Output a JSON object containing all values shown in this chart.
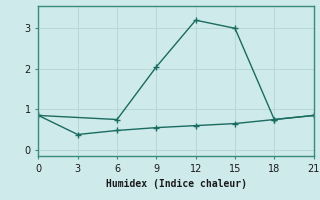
{
  "xlabel": "Humidex (Indice chaleur)",
  "background_color": "#ceeaea",
  "line_color": "#1a6b60",
  "grid_color": "#b8d8d8",
  "series1_x": [
    0,
    6,
    9,
    12,
    15,
    18,
    21
  ],
  "series1_y": [
    0.85,
    0.75,
    2.05,
    3.2,
    3.0,
    0.75,
    0.85
  ],
  "series2_x": [
    0,
    3,
    6,
    9,
    12,
    15,
    18,
    21
  ],
  "series2_y": [
    0.85,
    0.38,
    0.48,
    0.55,
    0.6,
    0.65,
    0.75,
    0.85
  ],
  "xlim": [
    0,
    21
  ],
  "ylim": [
    -0.15,
    3.55
  ],
  "xticks": [
    0,
    3,
    6,
    9,
    12,
    15,
    18,
    21
  ],
  "yticks": [
    0,
    1,
    2,
    3
  ],
  "marker": "+"
}
